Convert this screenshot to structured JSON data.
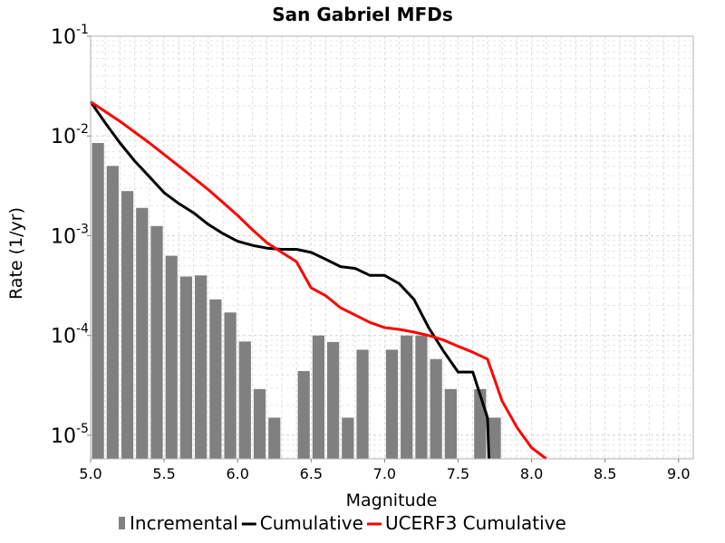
{
  "chart_data": {
    "type": "bar",
    "title": "San Gabriel MFDs",
    "xlabel": "Magnitude",
    "ylabel": "Rate (1/yr)",
    "xlim": [
      5.0,
      9.1
    ],
    "ylim": [
      5.8e-06,
      0.1
    ],
    "yscale": "log",
    "grid": true,
    "legend_placement": "bottom",
    "xticks": [
      5.0,
      5.5,
      6.0,
      6.5,
      7.0,
      7.5,
      8.0,
      8.5,
      9.0
    ],
    "xtick_labels": [
      "5.0",
      "5.5",
      "6.0",
      "6.5",
      "7.0",
      "7.5",
      "8.0",
      "8.5",
      "9.0"
    ],
    "yticks": [
      {
        "value": 1e-05,
        "base": "10",
        "exp": "-5"
      },
      {
        "value": 0.0001,
        "base": "10",
        "exp": "-4"
      },
      {
        "value": 0.001,
        "base": "10",
        "exp": "-3"
      },
      {
        "value": 0.01,
        "base": "10",
        "exp": "-2"
      },
      {
        "value": 0.1,
        "base": "10",
        "exp": "-1"
      }
    ],
    "series": [
      {
        "name": "Incremental",
        "kind": "bar",
        "color": "#808080",
        "bar_width": 0.1,
        "x": [
          5.05,
          5.15,
          5.25,
          5.35,
          5.45,
          5.55,
          5.65,
          5.75,
          5.85,
          5.95,
          6.05,
          6.15,
          6.25,
          6.45,
          6.55,
          6.65,
          6.75,
          6.85,
          7.05,
          7.15,
          7.25,
          7.35,
          7.45,
          7.65,
          7.75
        ],
        "y": [
          0.0085,
          0.005,
          0.0028,
          0.0019,
          0.00125,
          0.00063,
          0.00039,
          0.0004,
          0.00023,
          0.00017,
          8.7e-05,
          2.9e-05,
          1.5e-05,
          4.4e-05,
          0.0001,
          8.6e-05,
          1.5e-05,
          7.2e-05,
          7.2e-05,
          0.0001,
          0.0001,
          5.8e-05,
          2.9e-05,
          2.9e-05,
          1.5e-05
        ]
      },
      {
        "name": "Cumulative",
        "kind": "line",
        "color": "#000000",
        "x": [
          5.0,
          5.1,
          5.2,
          5.3,
          5.4,
          5.5,
          5.6,
          5.7,
          5.8,
          5.9,
          6.0,
          6.1,
          6.2,
          6.3,
          6.4,
          6.5,
          6.6,
          6.7,
          6.8,
          6.9,
          7.0,
          7.1,
          7.2,
          7.3,
          7.4,
          7.5,
          7.6,
          7.7,
          7.71
        ],
        "y": [
          0.022,
          0.0135,
          0.0085,
          0.0056,
          0.0039,
          0.0027,
          0.0021,
          0.0017,
          0.0013,
          0.00105,
          0.00088,
          0.0008,
          0.00075,
          0.00073,
          0.00073,
          0.00068,
          0.00058,
          0.00049,
          0.00047,
          0.0004,
          0.0004,
          0.00033,
          0.00023,
          0.00012,
          7e-05,
          4.3e-05,
          4.3e-05,
          1.5e-05,
          5.8e-06
        ]
      },
      {
        "name": "UCERF3 Cumulative",
        "kind": "line",
        "color": "#ff0000",
        "x": [
          5.0,
          5.2,
          5.4,
          5.6,
          5.8,
          6.0,
          6.1,
          6.2,
          6.3,
          6.4,
          6.5,
          6.6,
          6.7,
          6.8,
          6.9,
          7.0,
          7.1,
          7.2,
          7.3,
          7.4,
          7.5,
          7.6,
          7.7,
          7.8,
          7.9,
          8.0,
          8.1
        ],
        "y": [
          0.022,
          0.014,
          0.0085,
          0.005,
          0.0029,
          0.0016,
          0.00115,
          0.00085,
          0.00068,
          0.00055,
          0.0003,
          0.00025,
          0.00019,
          0.00016,
          0.000135,
          0.00012,
          0.000115,
          0.000108,
          0.0001,
          9e-05,
          7.8e-05,
          6.8e-05,
          5.8e-05,
          2.2e-05,
          1.2e-05,
          7.5e-06,
          5.8e-06
        ]
      }
    ]
  }
}
